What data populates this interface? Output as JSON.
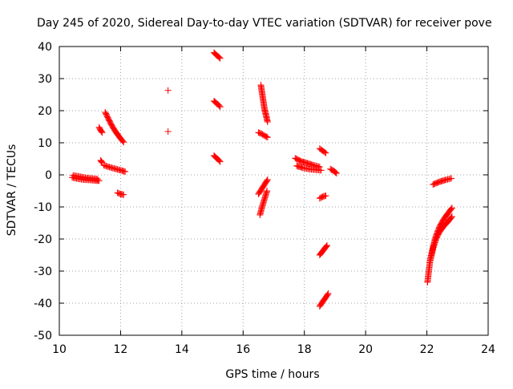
{
  "chart_data": {
    "type": "scatter",
    "title": "Day 245 of 2020, Sidereal Day-to-day VTEC variation (SDTVAR) for receiver pove",
    "xlabel": "GPS time / hours",
    "ylabel": "SDTVAR / TECUs",
    "xlim": [
      10,
      24
    ],
    "ylim": [
      -50,
      40
    ],
    "x_ticks": [
      10,
      12,
      14,
      16,
      18,
      20,
      22,
      24
    ],
    "y_ticks": [
      -50,
      -40,
      -30,
      -20,
      -10,
      0,
      10,
      20,
      30,
      40
    ],
    "grid": true,
    "marker": "plus",
    "colors": {
      "points": "#ff0000",
      "grid": "#a0a0a0",
      "axes": "#000000"
    },
    "series": [
      {
        "name": "SDTVAR",
        "arcs": [
          {
            "x": [
              10.42,
              10.6,
              10.8,
              11.0,
              11.2,
              11.3
            ],
            "y": [
              -0.8,
              -1.2,
              -1.5,
              -1.6,
              -1.8,
              -1.8
            ]
          },
          {
            "x": [
              10.45,
              10.65,
              10.85,
              11.05,
              11.25
            ],
            "y": [
              -0.2,
              -0.5,
              -0.9,
              -1.1,
              -1.3
            ]
          },
          {
            "x": [
              11.3,
              11.35,
              11.4
            ],
            "y": [
              14.8,
              13.9,
              13.2
            ]
          },
          {
            "x": [
              11.35,
              11.4
            ],
            "y": [
              4.5,
              3.8
            ]
          },
          {
            "x": [
              11.5,
              11.6,
              11.7,
              11.8,
              11.9,
              12.0,
              12.1
            ],
            "y": [
              19.5,
              17.5,
              15.6,
              14.0,
              12.6,
              11.3,
              10.2
            ]
          },
          {
            "x": [
              11.45,
              11.6,
              11.75,
              11.9,
              12.05,
              12.15
            ],
            "y": [
              3.0,
              2.5,
              2.1,
              1.7,
              1.3,
              1.0
            ]
          },
          {
            "x": [
              11.9,
              12.0,
              12.1
            ],
            "y": [
              -5.6,
              -6.0,
              -6.2
            ]
          },
          {
            "x": [
              13.55
            ],
            "y": [
              26.3
            ]
          },
          {
            "x": [
              13.55
            ],
            "y": [
              13.5
            ]
          },
          {
            "x": [
              15.05,
              15.12,
              15.2,
              15.25
            ],
            "y": [
              38.1,
              37.4,
              36.8,
              36.3
            ]
          },
          {
            "x": [
              15.05,
              15.12,
              15.2,
              15.25
            ],
            "y": [
              23.0,
              22.4,
              21.8,
              21.2
            ]
          },
          {
            "x": [
              15.05,
              15.12,
              15.2,
              15.25
            ],
            "y": [
              6.0,
              5.3,
              4.7,
              4.1
            ]
          },
          {
            "x": [
              16.5,
              16.6,
              16.7,
              16.8
            ],
            "y": [
              13.2,
              12.8,
              12.2,
              11.7
            ]
          },
          {
            "x": [
              16.58,
              16.62,
              16.66,
              16.7,
              16.75,
              16.8
            ],
            "y": [
              28.0,
              25.5,
              23.0,
              20.5,
              18.5,
              16.5
            ]
          },
          {
            "x": [
              16.5,
              16.6,
              16.7,
              16.8
            ],
            "y": [
              -6.0,
              -4.5,
              -3.0,
              -1.5
            ]
          },
          {
            "x": [
              16.55,
              16.62,
              16.7,
              16.78
            ],
            "y": [
              -12.5,
              -10.0,
              -7.5,
              -5.0
            ]
          },
          {
            "x": [
              17.7,
              17.9,
              18.1,
              18.3,
              18.5
            ],
            "y": [
              5.2,
              4.2,
              3.6,
              3.0,
              2.5
            ]
          },
          {
            "x": [
              17.75,
              17.95,
              18.15,
              18.35,
              18.55
            ],
            "y": [
              2.8,
              2.2,
              1.8,
              1.6,
              1.4
            ]
          },
          {
            "x": [
              18.5,
              18.6,
              18.7
            ],
            "y": [
              8.2,
              7.5,
              6.8
            ]
          },
          {
            "x": [
              18.85,
              18.95,
              19.05
            ],
            "y": [
              1.8,
              1.3,
              0.5
            ]
          },
          {
            "x": [
              18.5,
              18.6,
              18.7
            ],
            "y": [
              -7.3,
              -6.8,
              -6.5
            ]
          },
          {
            "x": [
              18.5,
              18.58,
              18.66,
              18.74
            ],
            "y": [
              -25.0,
              -24.0,
              -23.0,
              -22.0
            ]
          },
          {
            "x": [
              18.5,
              18.6,
              18.7,
              18.78
            ],
            "y": [
              -41.0,
              -39.5,
              -38.2,
              -37.0
            ]
          },
          {
            "x": [
              22.2,
              22.4,
              22.6,
              22.8
            ],
            "y": [
              -3.0,
              -2.2,
              -1.6,
              -1.1
            ]
          },
          {
            "x": [
              22.02,
              22.1,
              22.2,
              22.3,
              22.42,
              22.55,
              22.7,
              22.82
            ],
            "y": [
              -33.5,
              -27.0,
              -22.5,
              -19.0,
              -16.0,
              -13.8,
              -11.8,
              -10.3
            ]
          },
          {
            "x": [
              22.1,
              22.2,
              22.3,
              22.4,
              22.55,
              22.7,
              22.82
            ],
            "y": [
              -27.0,
              -23.0,
              -20.0,
              -18.0,
              -16.0,
              -14.5,
              -13.0
            ]
          }
        ]
      }
    ]
  }
}
